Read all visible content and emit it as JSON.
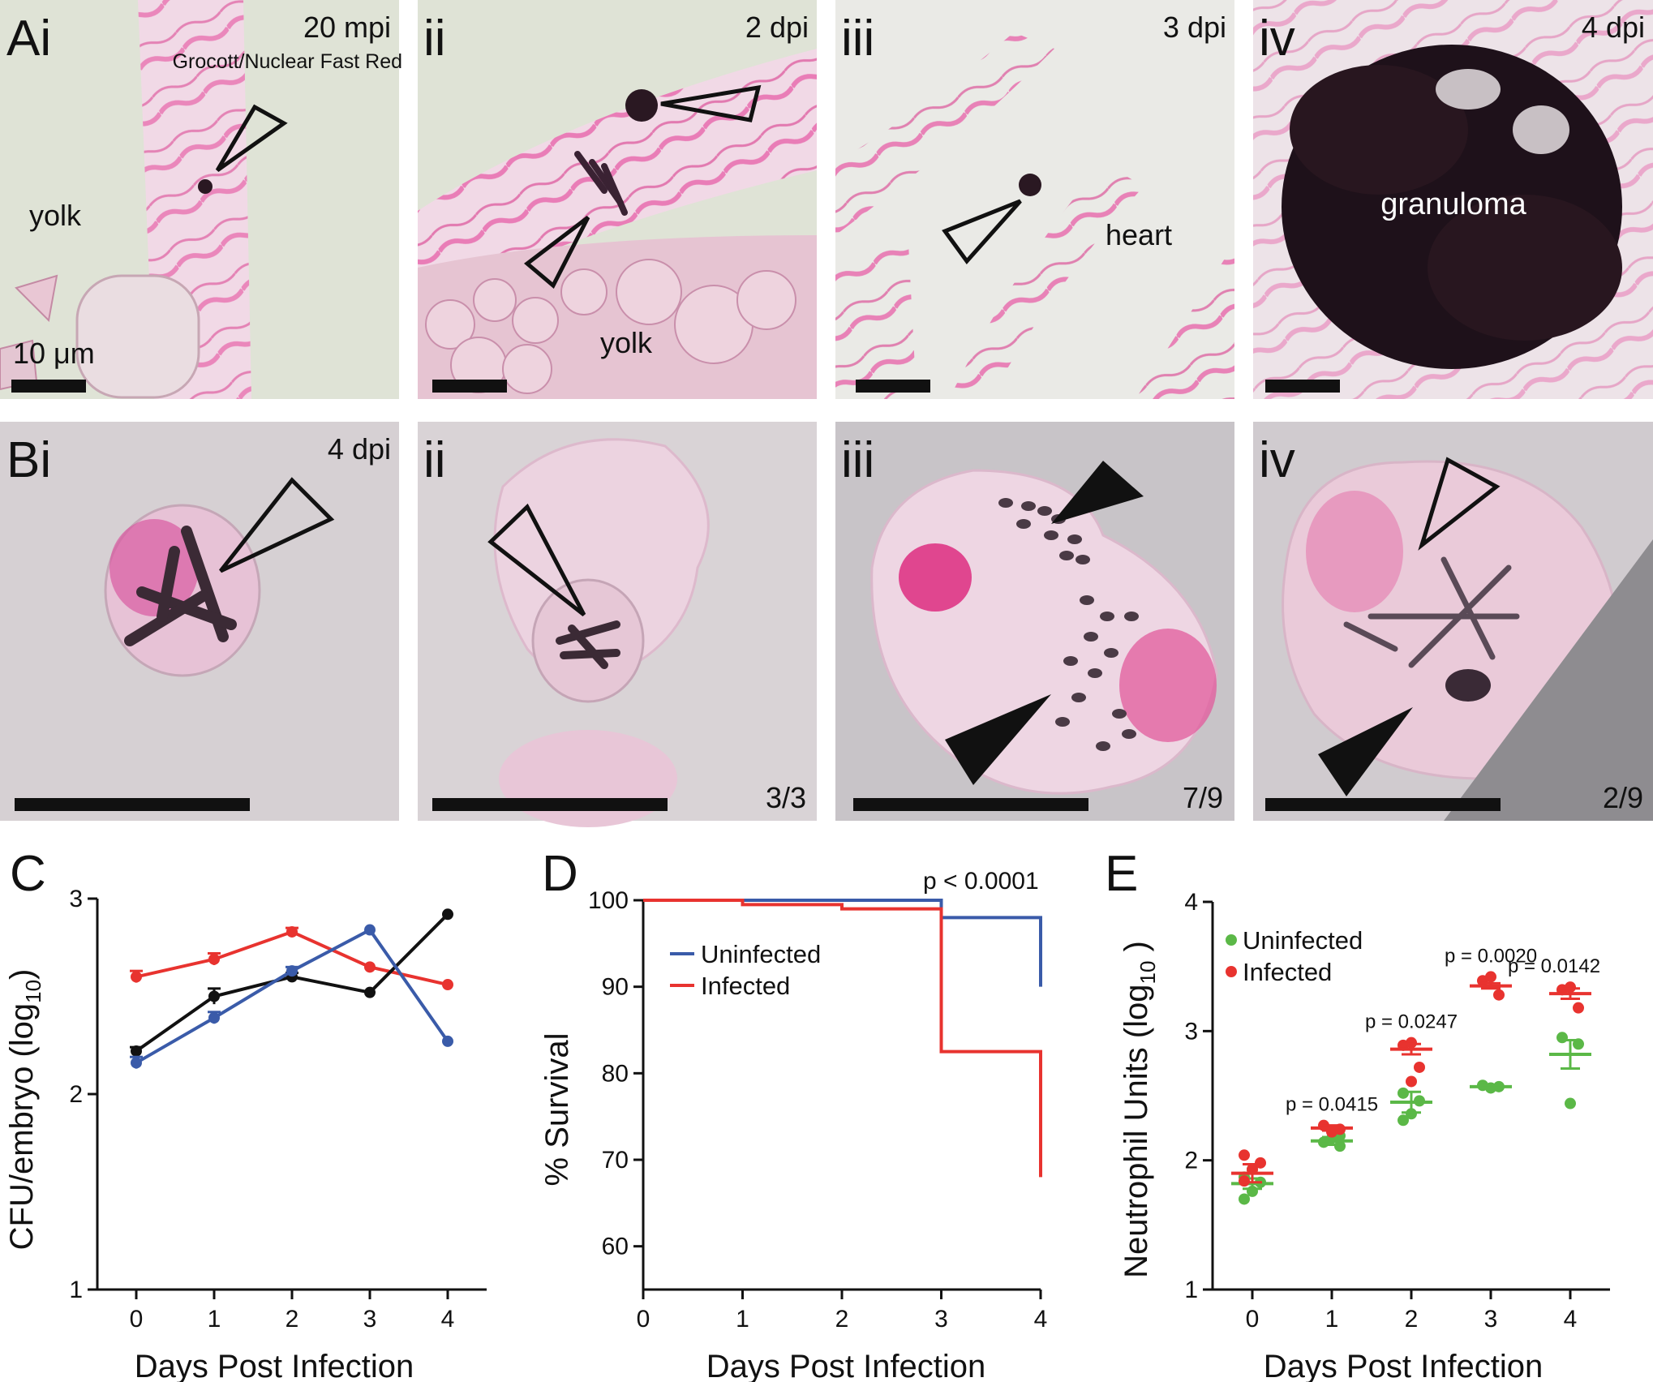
{
  "colors": {
    "red": "#e8332f",
    "blue": "#3a5ba9",
    "black": "#111111",
    "green": "#5bb847",
    "magenta": "#e0338a",
    "tissue_bg": "#f2e6ea",
    "grey_bg": "#cfc9cd"
  },
  "panels_A": [
    {
      "label": "Ai",
      "corner": "20 mpi",
      "stain": "Grocott/Nuclear Fast Red",
      "annotations": [
        "yolk"
      ],
      "scalebar": "10 μm"
    },
    {
      "label": "ii",
      "corner": "2 dpi",
      "annotations": [
        "yolk"
      ]
    },
    {
      "label": "iii",
      "corner": "3 dpi",
      "annotations": [
        "heart"
      ]
    },
    {
      "label": "iv",
      "corner": "4 dpi",
      "annotations": [
        "granuloma"
      ]
    }
  ],
  "panels_B": [
    {
      "label": "Bi",
      "corner": "4 dpi",
      "fraction": ""
    },
    {
      "label": "ii",
      "corner": "",
      "fraction": "3/3"
    },
    {
      "label": "iii",
      "corner": "",
      "fraction": "7/9"
    },
    {
      "label": "iv",
      "corner": "",
      "fraction": "2/9"
    }
  ],
  "chart_data": [
    {
      "panel": "C",
      "type": "line",
      "xlabel": "Days Post Infection",
      "ylabel": "CFU/embryo (log10)",
      "ylabel_main": "CFU/embryo (log",
      "ylabel_sub": "10",
      "ylabel_end": ")",
      "x": [
        0,
        1,
        2,
        3,
        4
      ],
      "xlim": [
        -0.5,
        4.5
      ],
      "ylim": [
        1,
        3
      ],
      "yticks": [
        1,
        2,
        3
      ],
      "series": [
        {
          "color": "#e8332f",
          "values": [
            2.6,
            2.69,
            2.83,
            2.65,
            2.56
          ],
          "err": [
            0.03,
            0.03,
            0.02,
            0,
            0
          ]
        },
        {
          "color": "#111111",
          "values": [
            2.22,
            2.5,
            2.6,
            2.52,
            2.92
          ],
          "err": [
            0.02,
            0.04,
            0.02,
            0,
            0
          ]
        },
        {
          "color": "#3a5ba9",
          "values": [
            2.16,
            2.39,
            2.63,
            2.84,
            2.27
          ],
          "err": [
            0.03,
            0.03,
            0.02,
            0,
            0
          ]
        }
      ]
    },
    {
      "panel": "D",
      "type": "line",
      "xlabel": "Days Post Infection",
      "ylabel": "% Survival",
      "x_ticks": [
        0,
        1,
        2,
        3,
        4
      ],
      "xlim": [
        0,
        4
      ],
      "ylim": [
        55,
        100
      ],
      "yticks": [
        60,
        70,
        80,
        90,
        100
      ],
      "annotation": "p < 0.0001",
      "legend_position": "upper-left",
      "series": [
        {
          "name": "Uninfected",
          "color": "#3a5ba9",
          "steps": [
            [
              0,
              100
            ],
            [
              3,
              100
            ],
            [
              3,
              98
            ],
            [
              4,
              98
            ],
            [
              4,
              90
            ]
          ]
        },
        {
          "name": "Infected",
          "color": "#e8332f",
          "steps": [
            [
              0,
              100
            ],
            [
              1,
              100
            ],
            [
              1,
              99.5
            ],
            [
              2,
              99.5
            ],
            [
              2,
              99
            ],
            [
              3,
              99
            ],
            [
              3,
              82.5
            ],
            [
              4,
              82.5
            ],
            [
              4,
              68
            ]
          ]
        }
      ]
    },
    {
      "panel": "E",
      "type": "scatter",
      "xlabel": "Days Post Infection",
      "ylabel": "Neutrophil Units (log10)",
      "ylabel_main": "Neutrophil Units (log",
      "ylabel_sub": "10",
      "ylabel_end": " )",
      "x": [
        0,
        1,
        2,
        3,
        4
      ],
      "xlim": [
        -0.5,
        4.5
      ],
      "ylim": [
        1,
        4
      ],
      "yticks": [
        1,
        2,
        3,
        4
      ],
      "legend_position": "upper-left",
      "series": [
        {
          "name": "Uninfected",
          "color": "#5bb847",
          "mean": [
            1.82,
            2.15,
            2.45,
            2.57,
            2.82
          ],
          "sem": [
            0.04,
            0.03,
            0.08,
            0.01,
            0.11
          ],
          "points": [
            [
              0,
              1.7
            ],
            [
              0,
              1.76
            ],
            [
              0,
              1.83
            ],
            [
              0,
              1.87
            ],
            [
              0,
              1.93
            ],
            [
              1,
              2.11
            ],
            [
              1,
              2.14
            ],
            [
              1,
              2.17
            ],
            [
              1,
              2.19
            ],
            [
              2,
              2.31
            ],
            [
              2,
              2.36
            ],
            [
              2,
              2.46
            ],
            [
              2,
              2.52
            ],
            [
              3,
              2.56
            ],
            [
              3,
              2.57
            ],
            [
              3,
              2.58
            ],
            [
              4,
              2.44
            ],
            [
              4,
              2.9
            ],
            [
              4,
              2.95
            ]
          ]
        },
        {
          "name": "Infected",
          "color": "#e8332f",
          "mean": [
            1.9,
            2.25,
            2.86,
            3.35,
            3.29
          ],
          "sem": [
            0.07,
            0.02,
            0.04,
            0.02,
            0.04
          ],
          "points": [
            [
              0,
              1.84
            ],
            [
              0,
              1.93
            ],
            [
              0,
              1.98
            ],
            [
              0,
              2.04
            ],
            [
              1,
              2.22
            ],
            [
              1,
              2.24
            ],
            [
              1,
              2.27
            ],
            [
              2,
              2.61
            ],
            [
              2,
              2.72
            ],
            [
              2,
              2.89
            ],
            [
              2,
              2.91
            ],
            [
              3,
              3.28
            ],
            [
              3,
              3.39
            ],
            [
              3,
              3.42
            ],
            [
              4,
              3.18
            ],
            [
              4,
              3.32
            ],
            [
              4,
              3.34
            ]
          ]
        }
      ],
      "pvalues": [
        {
          "x": 1,
          "text": "p = 0.0415"
        },
        {
          "x": 2,
          "text": "p = 0.0247"
        },
        {
          "x": 3,
          "text": "p = 0.0020"
        },
        {
          "x": 4,
          "text": "p = 0.0142"
        }
      ]
    }
  ]
}
